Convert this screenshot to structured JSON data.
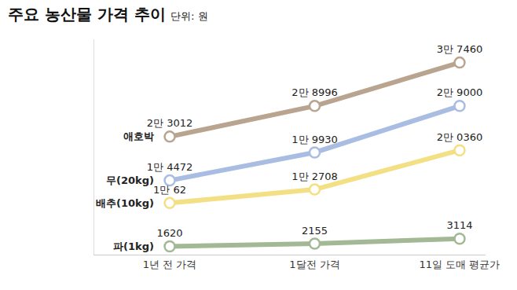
{
  "chart_data": {
    "type": "line",
    "title": "주요 농산물 가격 추이",
    "subtitle": "단위: 원",
    "categories": [
      "1년 전 가격",
      "1달전 가격",
      "11일 도매 평균가"
    ],
    "series": [
      {
        "name": "애호박",
        "color": "#b9a48f",
        "values": [
          23012,
          28996,
          37460
        ],
        "value_labels": [
          "2만 3012",
          "2만 8996",
          "3만 7460"
        ]
      },
      {
        "name": "무(20kg)",
        "color": "#a9bde2",
        "values": [
          14472,
          19930,
          29000
        ],
        "value_labels": [
          "1만 4472",
          "1만 9930",
          "2만 9000"
        ]
      },
      {
        "name": "배추(10kg)",
        "color": "#f3df84",
        "values": [
          10062,
          12708,
          20360
        ],
        "value_labels": [
          "1만 62",
          "1만 2708",
          "2만 0360"
        ]
      },
      {
        "name": "파(1kg)",
        "color": "#a3b895",
        "values": [
          1620,
          2155,
          3114
        ],
        "value_labels": [
          "1620",
          "2155",
          "3114"
        ]
      }
    ],
    "ylim": [
      0,
      42000
    ],
    "tick_labels": "x",
    "data_labels": true,
    "marker": "circle",
    "grid": false
  }
}
